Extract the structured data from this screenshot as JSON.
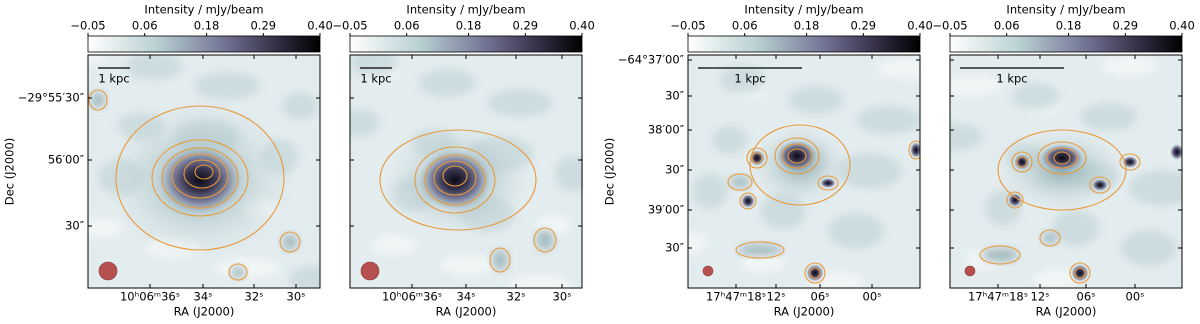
{
  "panels": [
    {
      "colorbar": {
        "label": "Intensity / mJy/beam",
        "lim": [
          -0.05,
          0.4
        ],
        "ticks": [
          {
            "value": -0.05,
            "label": "−0.05"
          },
          0.06,
          0.18,
          0.29,
          {
            "value": 0.4,
            "label": "0.40"
          }
        ]
      },
      "scale_bar": "1 kpc",
      "x_label": "RA (J2000)",
      "x_ticks": [
        "10ʰ06ᵐ36ˢ",
        "34ˢ",
        "32ˢ",
        "30ˢ"
      ],
      "y_label": "Dec (J2000)",
      "y_ticks": [
        "−29°55′30″",
        "56′00″",
        "30″"
      ]
    },
    {
      "colorbar": {
        "label": "Intensity / mJy/beam",
        "lim": [
          -0.05,
          0.4
        ],
        "ticks": [
          {
            "value": -0.05,
            "label": "−0.05"
          },
          0.06,
          0.18,
          0.29,
          {
            "value": 0.4,
            "label": "0.40"
          }
        ]
      },
      "scale_bar": "1 kpc",
      "x_label": "RA (J2000)",
      "x_ticks": [
        "10ʰ06ᵐ36ˢ",
        "34ˢ",
        "32ˢ",
        "30ˢ"
      ]
    },
    {
      "colorbar": {
        "label": "Intensity / mJy/beam",
        "lim": [
          -0.05,
          0.4
        ],
        "ticks": [
          {
            "value": -0.05,
            "label": "−0.05"
          },
          0.06,
          0.18,
          0.29,
          {
            "value": 0.4,
            "label": "0.40"
          }
        ]
      },
      "scale_bar": "1 kpc",
      "x_label": "RA (J2000)",
      "x_ticks": [
        "17ʰ47ᵐ18ˢ",
        "12ˢ",
        "06ˢ",
        "00ˢ"
      ],
      "y_label": "Dec (J2000)",
      "y_ticks": [
        "−64°37′00″",
        "30″",
        "38′00″",
        "30″",
        "39′00″",
        "30″"
      ]
    },
    {
      "colorbar": {
        "label": "Intensity / mJy/beam",
        "lim": [
          -0.05,
          0.4
        ],
        "ticks": [
          {
            "value": -0.05,
            "label": "−0.05"
          },
          0.06,
          0.18,
          0.29,
          {
            "value": 0.4,
            "label": "0.40"
          }
        ]
      },
      "scale_bar": "1 kpc",
      "x_label": "RA (J2000)",
      "x_ticks": [
        "17ʰ47ᵐ18ˢ",
        "12ˢ",
        "06ˢ",
        "00ˢ"
      ]
    }
  ]
}
